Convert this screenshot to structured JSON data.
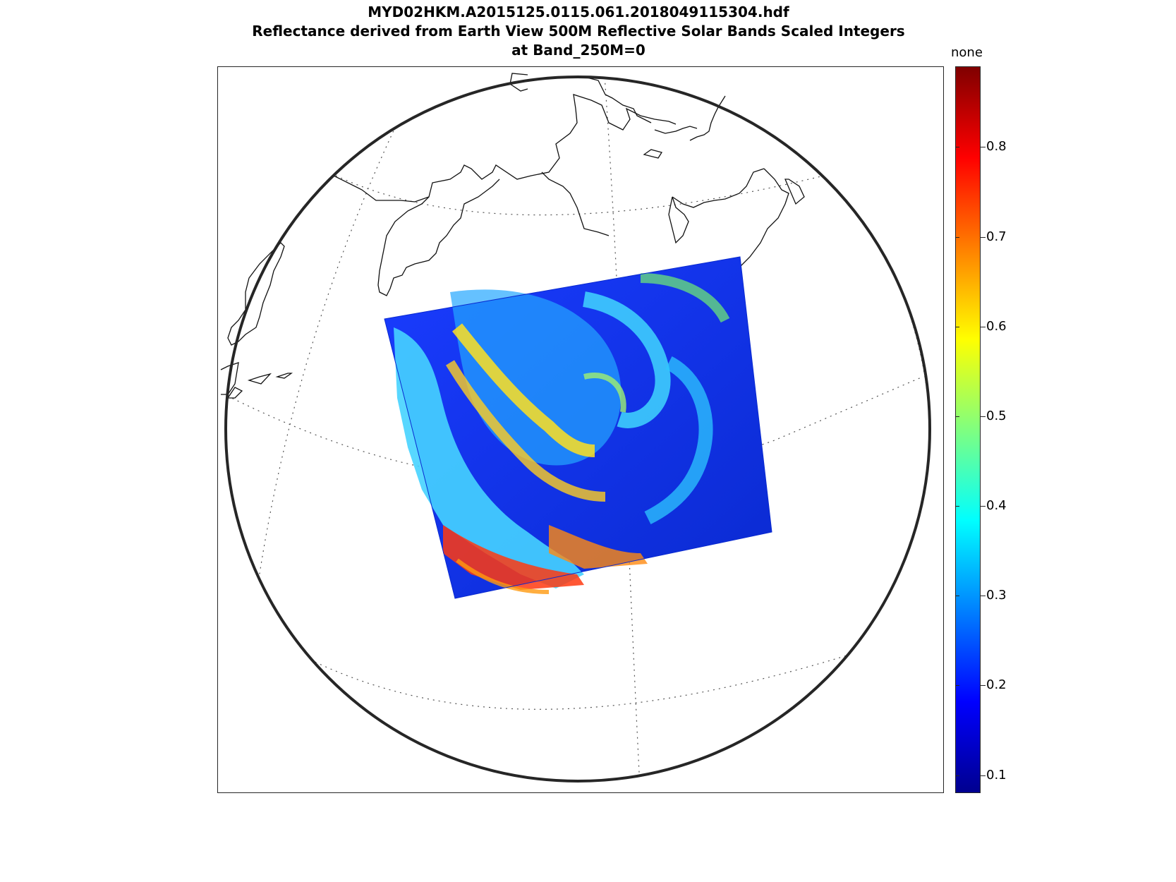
{
  "title": {
    "line1": "MYD02HKM.A2015125.0115.061.2018049115304.hdf",
    "line2": "Reflectance derived from Earth View 500M Reflective Solar Bands Scaled Integers",
    "line3": "at Band_250M=0"
  },
  "colorbar": {
    "unit_label": "none",
    "colormap": "jet",
    "range": [
      0.08,
      0.89
    ],
    "ticks": [
      "0.1",
      "0.2",
      "0.3",
      "0.4",
      "0.5",
      "0.6",
      "0.7",
      "0.8"
    ]
  },
  "map": {
    "projection": "orthographic",
    "graticule": "dotted",
    "coastlines": "black",
    "globe_outline_color": "#262626"
  },
  "swath": {
    "variable": "Reflectance",
    "description_colors": [
      "#00008f",
      "#0000ff",
      "#00ffff",
      "#ffff00",
      "#ff0000",
      "#800000"
    ]
  }
}
